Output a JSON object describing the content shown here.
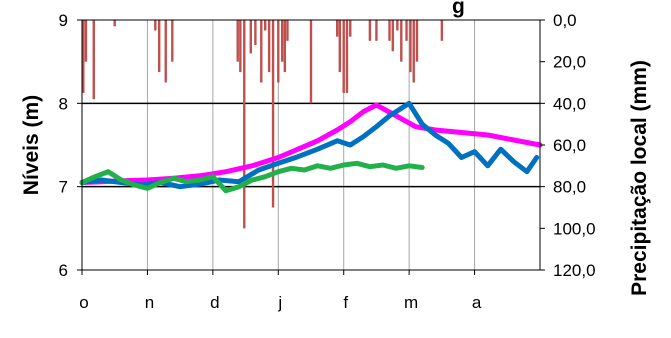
{
  "chart_data": {
    "type": "line",
    "title": "g",
    "ylabel_left": "Níveis (m)",
    "ylabel_right": "Precipitação  local (mm)",
    "ylim_left": [
      6,
      9
    ],
    "ylim_right": [
      120,
      0
    ],
    "yticks_left": [
      "6",
      "7",
      "8",
      "9"
    ],
    "yticks_right": [
      "0,0",
      "20,0",
      "40,0",
      "60,0",
      "80,0",
      "100,0",
      "120,0"
    ],
    "x_ticks": [
      "o",
      "n",
      "d",
      "j",
      "f",
      "m",
      "a"
    ],
    "xlim": [
      0,
      7
    ],
    "grid": true,
    "colors": {
      "precip": "#c0504d",
      "magenta": "#ff00ff",
      "blue": "#0070c0",
      "green": "#22b04a",
      "grid": "#a6a6a6",
      "hgrid": "#000000"
    },
    "series": [
      {
        "color": "magenta",
        "x": [
          0,
          0.3,
          0.6,
          1.0,
          1.4,
          1.8,
          2.2,
          2.6,
          3.0,
          3.3,
          3.6,
          3.9,
          4.1,
          4.3,
          4.5,
          4.8,
          5.1,
          5.4,
          5.8,
          6.2,
          6.6,
          7.0
        ],
        "y": [
          7.05,
          7.06,
          7.07,
          7.08,
          7.1,
          7.13,
          7.18,
          7.25,
          7.35,
          7.45,
          7.55,
          7.68,
          7.78,
          7.9,
          7.98,
          7.85,
          7.72,
          7.68,
          7.65,
          7.62,
          7.56,
          7.5
        ]
      },
      {
        "color": "blue",
        "x": [
          0,
          0.3,
          0.6,
          0.9,
          1.2,
          1.5,
          1.8,
          2.1,
          2.4,
          2.7,
          3.0,
          3.3,
          3.6,
          3.9,
          4.1,
          4.3,
          4.5,
          4.7,
          4.9,
          5.0,
          5.2,
          5.4,
          5.6,
          5.8,
          6.0,
          6.2,
          6.4,
          6.6,
          6.8,
          6.95
        ],
        "y": [
          7.05,
          7.08,
          7.05,
          7.02,
          7.05,
          7.0,
          7.03,
          7.08,
          7.06,
          7.2,
          7.28,
          7.36,
          7.45,
          7.55,
          7.5,
          7.6,
          7.72,
          7.85,
          7.95,
          8.0,
          7.75,
          7.62,
          7.52,
          7.35,
          7.42,
          7.25,
          7.45,
          7.3,
          7.18,
          7.35
        ]
      },
      {
        "color": "green",
        "x": [
          0,
          0.2,
          0.4,
          0.6,
          0.8,
          1.0,
          1.2,
          1.4,
          1.6,
          1.8,
          2.0,
          2.2,
          2.4,
          2.6,
          2.8,
          3.0,
          3.2,
          3.4,
          3.6,
          3.8,
          4.0,
          4.2,
          4.4,
          4.6,
          4.8,
          5.0,
          5.2
        ],
        "y": [
          7.05,
          7.12,
          7.18,
          7.08,
          7.02,
          6.98,
          7.05,
          7.1,
          7.06,
          7.08,
          7.12,
          6.95,
          7.0,
          7.08,
          7.12,
          7.18,
          7.22,
          7.2,
          7.25,
          7.22,
          7.26,
          7.28,
          7.24,
          7.26,
          7.22,
          7.25,
          7.23
        ]
      }
    ],
    "precipitation": {
      "x": [
        0.02,
        0.06,
        0.18,
        0.5,
        1.12,
        1.18,
        1.28,
        1.38,
        2.38,
        2.42,
        2.48,
        2.58,
        2.65,
        2.74,
        2.8,
        2.86,
        2.92,
        3.0,
        3.06,
        3.1,
        3.14,
        3.5,
        3.9,
        3.94,
        4.0,
        4.05,
        4.1,
        4.4,
        4.5,
        4.7,
        4.75,
        4.82,
        4.88,
        4.96,
        5.02,
        5.07,
        5.12,
        5.5
      ],
      "values": [
        35,
        20,
        38,
        3,
        5,
        25,
        30,
        20,
        20,
        25,
        100,
        16,
        12,
        30,
        5,
        25,
        90,
        30,
        20,
        25,
        10,
        40,
        8,
        25,
        35,
        35,
        8,
        10,
        10,
        10,
        15,
        5,
        20,
        10,
        25,
        30,
        20,
        10
      ]
    }
  }
}
